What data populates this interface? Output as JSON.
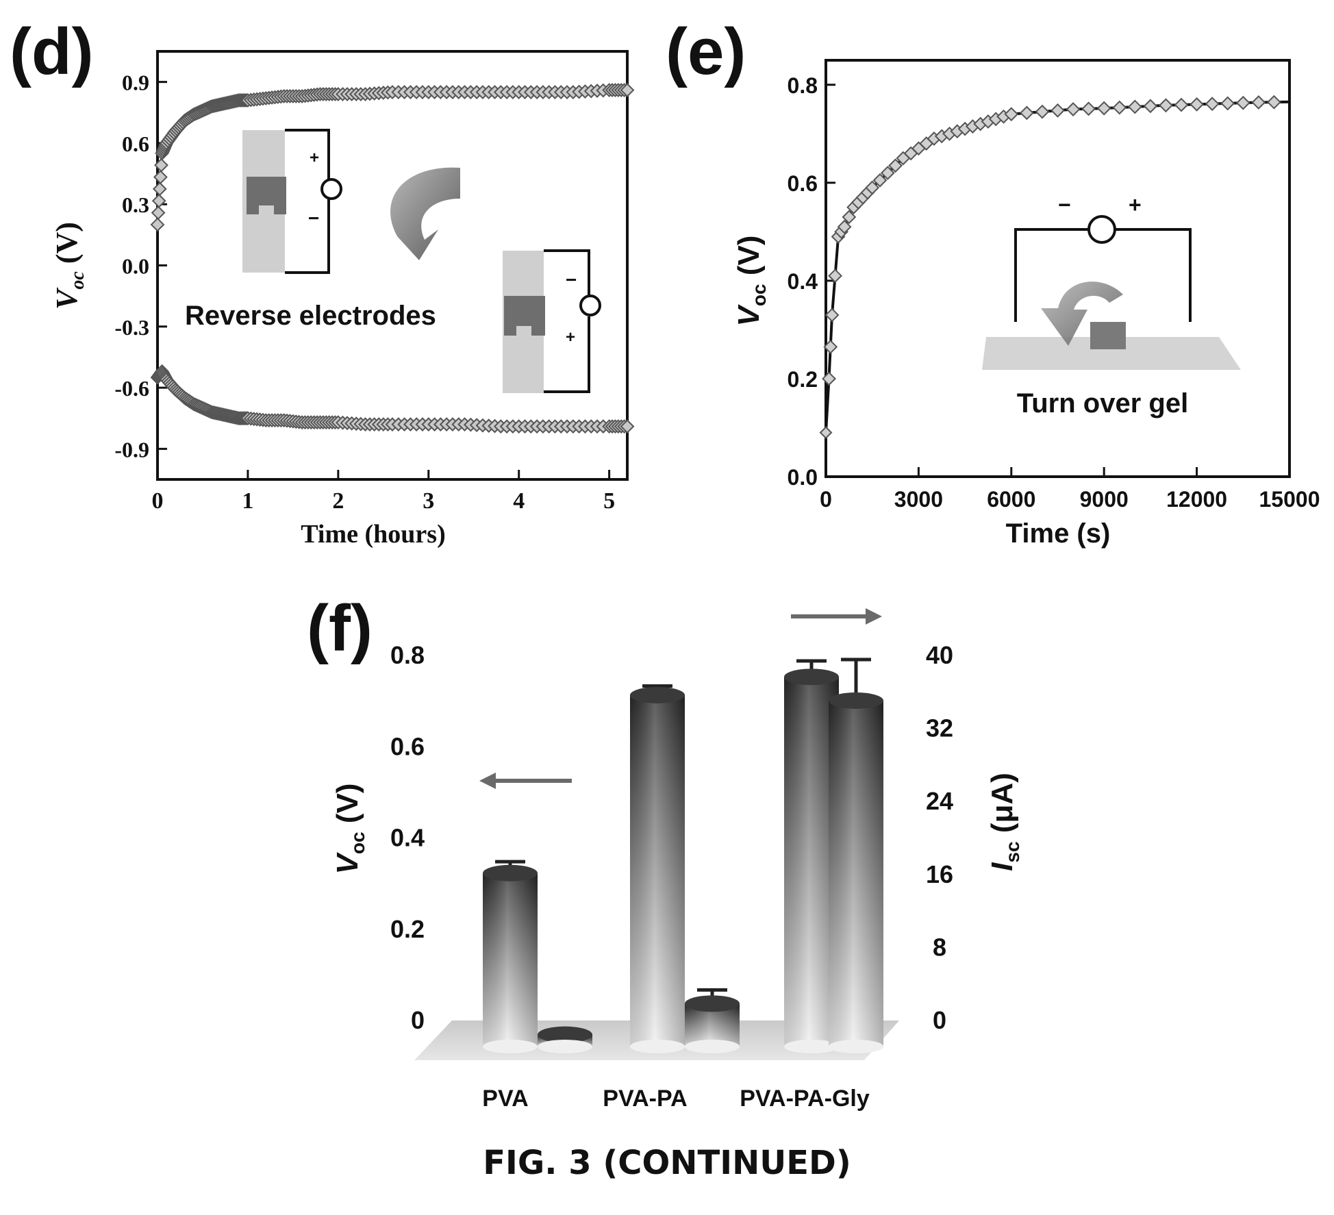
{
  "caption": "FIG. 3 (CONTINUED)",
  "panels": {
    "d": {
      "label": "(d)",
      "ylabel": "V",
      "ylabel_sub": "oc",
      "ylabel_unit": " (V)",
      "xlabel": "Time (hours)",
      "xticks": [
        "0",
        "1",
        "2",
        "3",
        "4",
        "5"
      ],
      "yticks": [
        "0.9",
        "0.6",
        "0.3",
        "0.0",
        "-0.3",
        "-0.6",
        "-0.9"
      ],
      "inset_text": "Reverse electrodes",
      "inset_signs_a": [
        "+",
        "−"
      ],
      "inset_signs_b": [
        "−",
        "+"
      ]
    },
    "e": {
      "label": "(e)",
      "ylabel": "V",
      "ylabel_sub": "oc",
      "ylabel_unit": " (V)",
      "xlabel": "Time (s)",
      "xticks": [
        "0",
        "3000",
        "6000",
        "9000",
        "12000",
        "15000"
      ],
      "yticks": [
        "0.8",
        "0.6",
        "0.4",
        "0.2",
        "0.0"
      ],
      "inset_text": "Turn over gel",
      "inset_signs": [
        "−",
        "+"
      ]
    },
    "f": {
      "label": "(f)",
      "ylabel_left": "V",
      "ylabel_left_sub": "oc",
      "ylabel_left_unit": " (V)",
      "ylabel_right": "I",
      "ylabel_right_sub": "sc",
      "ylabel_right_unit": " (μA)",
      "yticks_left": [
        "0.8",
        "0.6",
        "0.4",
        "0.2",
        "0"
      ],
      "yticks_right": [
        "40",
        "32",
        "24",
        "16",
        "8",
        "0"
      ],
      "categories": [
        "PVA",
        "PVA-PA",
        "PVA-PA-Gly"
      ]
    }
  },
  "chart_data": [
    {
      "panel": "d",
      "type": "scatter",
      "xlabel": "Time (hours)",
      "ylabel": "Voc (V)",
      "xlim": [
        0,
        5.2
      ],
      "ylim": [
        -1.05,
        1.05
      ],
      "grid": false,
      "series": [
        {
          "x": [
            0,
            0.05,
            0.1,
            0.2,
            0.3,
            0.4,
            0.5,
            0.6,
            0.7,
            0.8,
            0.9,
            1.0,
            1.2,
            1.4,
            1.6,
            1.8,
            2.0,
            2.3,
            2.6,
            3.0,
            3.4,
            3.8,
            4.2,
            4.6,
            5.0,
            5.2
          ],
          "y": [
            0.2,
            0.55,
            0.6,
            0.66,
            0.71,
            0.74,
            0.76,
            0.78,
            0.79,
            0.8,
            0.81,
            0.81,
            0.82,
            0.83,
            0.83,
            0.84,
            0.84,
            0.84,
            0.85,
            0.85,
            0.85,
            0.85,
            0.85,
            0.85,
            0.86,
            0.86
          ]
        },
        {
          "x": [
            0,
            0.05,
            0.1,
            0.2,
            0.3,
            0.4,
            0.5,
            0.6,
            0.7,
            0.8,
            0.9,
            1.0,
            1.2,
            1.4,
            1.6,
            1.8,
            2.0,
            2.3,
            2.6,
            3.0,
            3.4,
            3.8,
            4.2,
            4.6,
            5.0,
            5.2
          ],
          "y": [
            -0.55,
            -0.52,
            -0.56,
            -0.61,
            -0.65,
            -0.68,
            -0.7,
            -0.72,
            -0.73,
            -0.74,
            -0.75,
            -0.75,
            -0.76,
            -0.76,
            -0.77,
            -0.77,
            -0.77,
            -0.78,
            -0.78,
            -0.78,
            -0.78,
            -0.79,
            -0.79,
            -0.79,
            -0.79,
            -0.79
          ]
        }
      ]
    },
    {
      "panel": "e",
      "type": "line",
      "xlabel": "Time (s)",
      "ylabel": "Voc (V)",
      "xlim": [
        0,
        15000
      ],
      "ylim": [
        0,
        0.85
      ],
      "grid": false,
      "series": [
        {
          "x": [
            0,
            100,
            200,
            400,
            600,
            900,
            1200,
            1500,
            2000,
            2500,
            3000,
            3500,
            4000,
            4500,
            5000,
            5500,
            6000,
            7000,
            8000,
            9000,
            10000,
            11000,
            12000,
            13000,
            14000,
            15000
          ],
          "y": [
            0.09,
            0.2,
            0.33,
            0.49,
            0.51,
            0.55,
            0.57,
            0.59,
            0.62,
            0.65,
            0.67,
            0.69,
            0.7,
            0.71,
            0.72,
            0.73,
            0.74,
            0.745,
            0.75,
            0.752,
            0.755,
            0.758,
            0.76,
            0.762,
            0.764,
            0.765
          ]
        }
      ]
    },
    {
      "panel": "f",
      "type": "bar",
      "categories": [
        "PVA",
        "PVA-PA",
        "PVA-PA-Gly"
      ],
      "series": [
        {
          "name": "Voc (V)",
          "axis": "left",
          "values": [
            0.32,
            0.71,
            0.75
          ],
          "errors": [
            0.025,
            0.02,
            0.035
          ]
        },
        {
          "name": "Isc (μA)",
          "axis": "right",
          "values": [
            0.4,
            3.8,
            37
          ],
          "errors": [
            0.2,
            1.5,
            4.5
          ]
        }
      ],
      "ylim_left": [
        0,
        0.8
      ],
      "ylim_right": [
        0,
        40
      ],
      "ylabel_left": "Voc (V)",
      "ylabel_right": "Isc (μA)"
    }
  ]
}
